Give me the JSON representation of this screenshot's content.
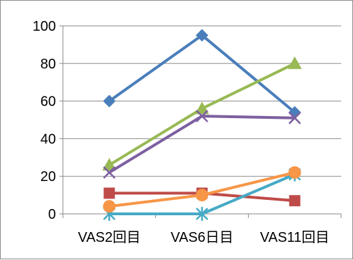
{
  "chart_data": {
    "type": "line",
    "title": "",
    "xlabel": "",
    "ylabel": "",
    "categories": [
      "VAS2回目",
      "VAS6日目",
      "VAS11回目"
    ],
    "ylim": [
      0,
      100
    ],
    "yticks": [
      0,
      20,
      40,
      60,
      80,
      100
    ],
    "grid": true,
    "legend": "none",
    "series": [
      {
        "values": [
          60,
          95,
          54
        ],
        "color": "#4a7ebb",
        "marker": "diamond"
      },
      {
        "values": [
          11,
          11,
          7
        ],
        "color": "#be4b48",
        "marker": "square"
      },
      {
        "values": [
          26,
          56,
          80
        ],
        "color": "#98b954",
        "marker": "triangle"
      },
      {
        "values": [
          22,
          52,
          51
        ],
        "color": "#7d60a0",
        "marker": "x"
      },
      {
        "values": [
          0,
          0,
          21
        ],
        "color": "#46aac5",
        "marker": "star"
      },
      {
        "values": [
          4,
          10,
          22
        ],
        "color": "#f79646",
        "marker": "circle"
      }
    ]
  }
}
